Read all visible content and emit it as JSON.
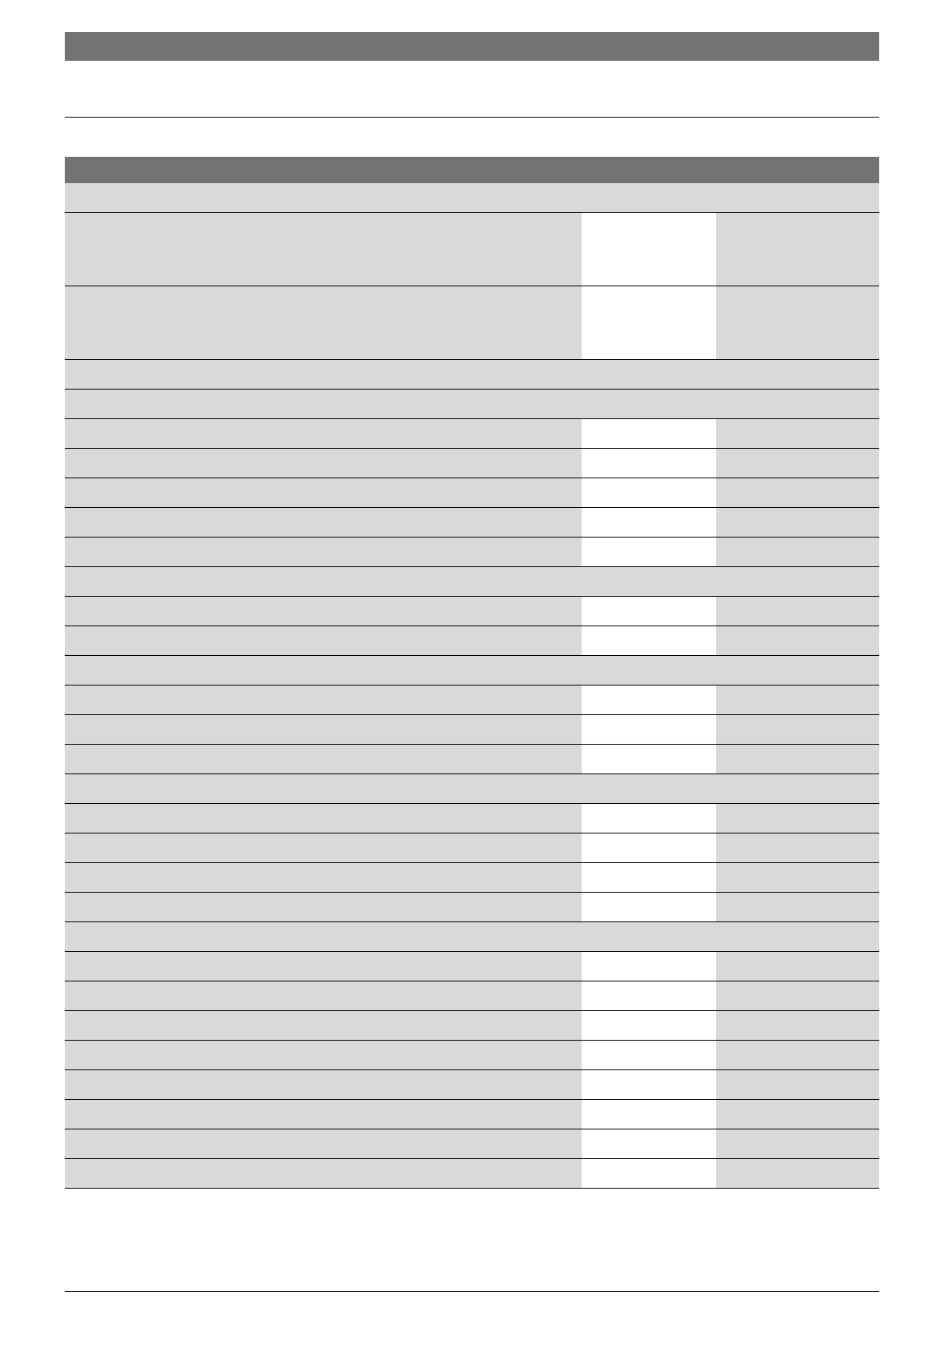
{
  "colors": {
    "header_bar": "#737373",
    "row_fill": "#d9d9d9",
    "input_cell": "#ffffff",
    "rule": "#000000"
  },
  "header": {
    "title": ""
  },
  "table": {
    "title": ""
  }
}
